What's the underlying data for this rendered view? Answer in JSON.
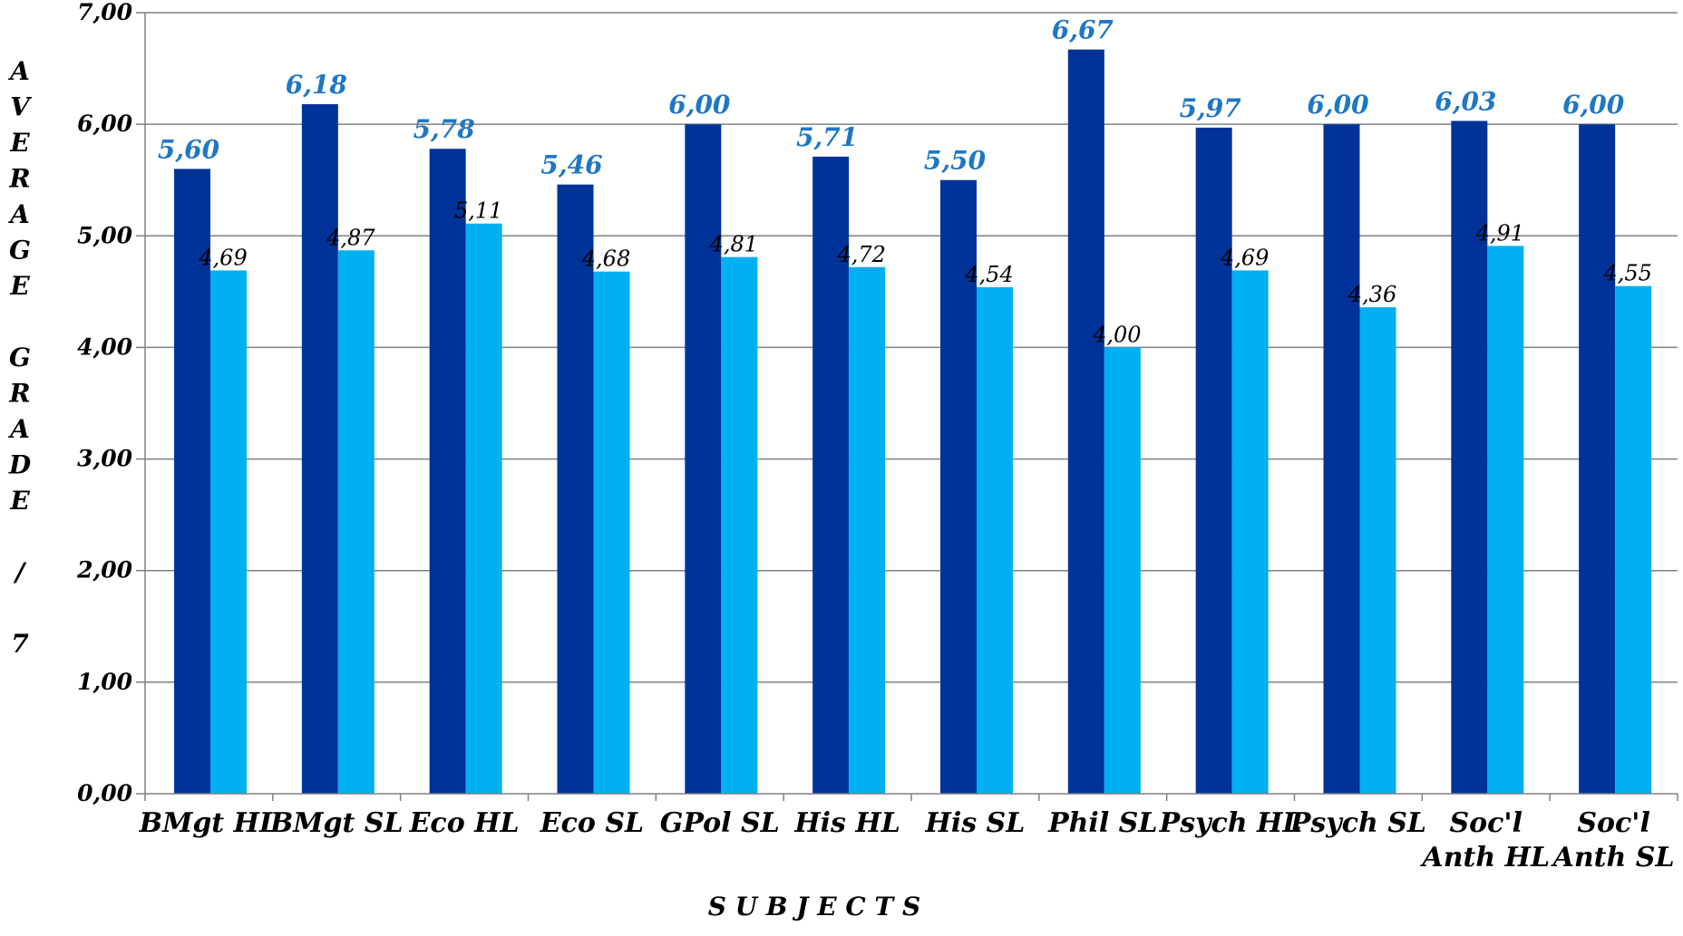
{
  "chart_data": {
    "type": "bar",
    "title": "",
    "xlabel": "S U B J E C T S",
    "ylabel": "A V E R A G E   G R A D E   /   7",
    "ylabel_letters": [
      "A",
      "V",
      "E",
      "R",
      "A",
      "G",
      "E",
      "",
      "G",
      "R",
      "A",
      "D",
      "E",
      "",
      "/",
      "",
      "7"
    ],
    "ylim": [
      0,
      7
    ],
    "yticks": [
      "0,00",
      "1,00",
      "2,00",
      "3,00",
      "4,00",
      "5,00",
      "6,00",
      "7,00"
    ],
    "grid": true,
    "legend": "none",
    "categories": [
      [
        "BMgt HL"
      ],
      [
        "BMgt SL"
      ],
      [
        "Eco HL"
      ],
      [
        "Eco SL"
      ],
      [
        "GPol SL"
      ],
      [
        "His HL"
      ],
      [
        "His SL"
      ],
      [
        "Phil SL"
      ],
      [
        "Psych HL"
      ],
      [
        "Psych SL"
      ],
      [
        "Soc'l",
        "Anth HL"
      ],
      [
        "Soc'l",
        "Anth SL"
      ]
    ],
    "series": [
      {
        "values": [
          5.6,
          6.18,
          5.78,
          5.46,
          6.0,
          5.71,
          5.5,
          6.67,
          5.97,
          6.0,
          6.03,
          6.0
        ],
        "labels": [
          "5,60",
          "6,18",
          "5,78",
          "5,46",
          "6,00",
          "5,71",
          "5,50",
          "6,67",
          "5,97",
          "6,00",
          "6,03",
          "6,00"
        ],
        "color": "#003399"
      },
      {
        "values": [
          4.69,
          4.87,
          5.11,
          4.68,
          4.81,
          4.72,
          4.54,
          4.0,
          4.69,
          4.36,
          4.91,
          4.55
        ],
        "labels": [
          "4,69",
          "4,87",
          "5,11",
          "4,68",
          "4,81",
          "4,72",
          "4,54",
          "4,00",
          "4,69",
          "4,36",
          "4,91",
          "4,55"
        ],
        "color": "#00b0f0"
      }
    ]
  }
}
